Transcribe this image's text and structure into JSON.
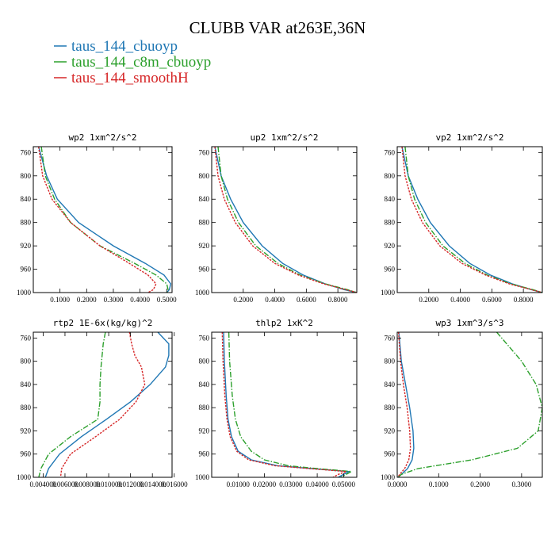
{
  "figure_title": "CLUBB VAR at263E,36N",
  "legend": [
    {
      "label": "taus_144_cbuoyp",
      "color": "#1f77b4",
      "dash": "solid"
    },
    {
      "label": "taus_144_c8m_cbuoyp",
      "color": "#2ca02c",
      "dash": "dashdot"
    },
    {
      "label": "taus_144_smoothH",
      "color": "#d62728",
      "dash": "dotted"
    }
  ],
  "chart_data": [
    {
      "type": "line",
      "title": "wp2  1xm^2/s^2",
      "xlim": [
        0,
        0.52
      ],
      "ylim": [
        1000,
        750
      ],
      "yticks": [
        760,
        800,
        840,
        880,
        920,
        960,
        1000
      ],
      "xticks": [
        0.1,
        0.2,
        0.3,
        0.4,
        0.5
      ],
      "xtick_labels": [
        "0.1000",
        "0.2000",
        "0.3000",
        "0.4000",
        "0.5000"
      ],
      "y": [
        750,
        800,
        840,
        880,
        920,
        950,
        970,
        985,
        995,
        1000
      ],
      "series": [
        {
          "name": "taus_144_cbuoyp",
          "values": [
            0.02,
            0.05,
            0.09,
            0.17,
            0.3,
            0.42,
            0.49,
            0.515,
            0.51,
            0.5
          ]
        },
        {
          "name": "taus_144_c8m_cbuoyp",
          "values": [
            0.03,
            0.045,
            0.08,
            0.14,
            0.25,
            0.38,
            0.46,
            0.5,
            0.505,
            0.5
          ]
        },
        {
          "name": "taus_144_smoothH",
          "values": [
            0.02,
            0.035,
            0.07,
            0.14,
            0.25,
            0.36,
            0.43,
            0.46,
            0.45,
            0.43
          ]
        }
      ]
    },
    {
      "type": "line",
      "title": "up2  1xm^2/s^2",
      "xlim": [
        0,
        0.92
      ],
      "ylim": [
        1000,
        750
      ],
      "yticks": [
        760,
        800,
        840,
        880,
        920,
        960,
        1000
      ],
      "xticks": [
        0.2,
        0.4,
        0.6,
        0.8
      ],
      "xtick_labels": [
        "0.2000",
        "0.4000",
        "0.6000",
        "0.8000"
      ],
      "y": [
        750,
        800,
        840,
        880,
        920,
        950,
        970,
        985,
        995,
        1000
      ],
      "series": [
        {
          "name": "taus_144_cbuoyp",
          "values": [
            0.02,
            0.06,
            0.12,
            0.2,
            0.32,
            0.45,
            0.58,
            0.72,
            0.84,
            0.92
          ]
        },
        {
          "name": "taus_144_c8m_cbuoyp",
          "values": [
            0.04,
            0.06,
            0.1,
            0.17,
            0.28,
            0.42,
            0.56,
            0.72,
            0.86,
            0.92
          ]
        },
        {
          "name": "taus_144_smoothH",
          "values": [
            0.02,
            0.04,
            0.08,
            0.15,
            0.26,
            0.4,
            0.55,
            0.71,
            0.85,
            0.92
          ]
        }
      ]
    },
    {
      "type": "line",
      "title": "vp2  1xm^2/s^2",
      "xlim": [
        0,
        0.92
      ],
      "ylim": [
        1000,
        750
      ],
      "yticks": [
        760,
        800,
        840,
        880,
        920,
        960,
        1000
      ],
      "xticks": [
        0.2,
        0.4,
        0.6,
        0.8
      ],
      "xtick_labels": [
        "0.2000",
        "0.4000",
        "0.6000",
        "0.8000"
      ],
      "y": [
        750,
        800,
        840,
        880,
        920,
        950,
        970,
        985,
        995,
        1000
      ],
      "series": [
        {
          "name": "taus_144_cbuoyp",
          "values": [
            0.03,
            0.07,
            0.13,
            0.21,
            0.33,
            0.46,
            0.59,
            0.73,
            0.85,
            0.92
          ]
        },
        {
          "name": "taus_144_c8m_cbuoyp",
          "values": [
            0.05,
            0.07,
            0.11,
            0.18,
            0.29,
            0.43,
            0.57,
            0.72,
            0.86,
            0.92
          ]
        },
        {
          "name": "taus_144_smoothH",
          "values": [
            0.03,
            0.05,
            0.09,
            0.16,
            0.27,
            0.41,
            0.56,
            0.71,
            0.85,
            0.92
          ]
        }
      ]
    },
    {
      "type": "line",
      "title": "rtp2  1E-6x(kg/kg)^2",
      "xlim": [
        0.0031,
        0.0158
      ],
      "ylim": [
        1000,
        750
      ],
      "yticks": [
        760,
        800,
        840,
        880,
        920,
        960,
        1000
      ],
      "xticks": [
        0.004,
        0.006,
        0.008,
        0.01,
        0.012,
        0.014,
        0.016
      ],
      "xtick_labels": [
        "0.004000",
        "0.006000",
        "0.008000",
        "0.010000",
        "0.012000",
        "0.014000",
        "0.016000"
      ],
      "y": [
        750,
        770,
        790,
        810,
        840,
        870,
        900,
        930,
        960,
        985,
        1000
      ],
      "series": [
        {
          "name": "taus_144_cbuoyp",
          "values": [
            0.0145,
            0.0155,
            0.0155,
            0.0152,
            0.0138,
            0.012,
            0.0098,
            0.0075,
            0.0055,
            0.0045,
            0.0042
          ]
        },
        {
          "name": "taus_144_c8m_cbuoyp",
          "values": [
            0.0097,
            0.0095,
            0.0094,
            0.0093,
            0.0092,
            0.0092,
            0.009,
            0.0065,
            0.0045,
            0.0038,
            0.0036
          ]
        },
        {
          "name": "taus_144_smoothH",
          "values": [
            0.0119,
            0.0121,
            0.0124,
            0.013,
            0.0133,
            0.0125,
            0.011,
            0.0088,
            0.0065,
            0.0057,
            0.0056
          ]
        }
      ]
    },
    {
      "type": "line",
      "title": "thlp2  1xK^2",
      "xlim": [
        0,
        0.055
      ],
      "ylim": [
        1000,
        750
      ],
      "yticks": [
        760,
        800,
        840,
        880,
        920,
        960,
        1000
      ],
      "xticks": [
        0.01,
        0.02,
        0.03,
        0.04,
        0.05
      ],
      "xtick_labels": [
        "0.01000",
        "0.02000",
        "0.03000",
        "0.04000",
        "0.05000"
      ],
      "y": [
        750,
        800,
        860,
        900,
        930,
        955,
        970,
        980,
        985,
        990,
        995,
        1000
      ],
      "series": [
        {
          "name": "taus_144_cbuoyp",
          "values": [
            0.0045,
            0.0048,
            0.0055,
            0.0062,
            0.0075,
            0.01,
            0.015,
            0.025,
            0.038,
            0.052,
            0.05,
            0.048
          ]
        },
        {
          "name": "taus_144_c8m_cbuoyp",
          "values": [
            0.0065,
            0.0068,
            0.0078,
            0.009,
            0.011,
            0.015,
            0.02,
            0.029,
            0.04,
            0.053,
            0.051,
            0.049
          ]
        },
        {
          "name": "taus_144_smoothH",
          "values": [
            0.004,
            0.0043,
            0.005,
            0.0058,
            0.007,
            0.0095,
            0.014,
            0.024,
            0.037,
            0.051,
            0.048,
            0.046
          ]
        }
      ]
    },
    {
      "type": "line",
      "title": "wp3  1xm^3/s^3",
      "xlim": [
        0,
        0.35
      ],
      "ylim": [
        1000,
        750
      ],
      "yticks": [
        760,
        800,
        840,
        880,
        920,
        960,
        1000
      ],
      "xticks": [
        0.0,
        0.1,
        0.2,
        0.3
      ],
      "xtick_labels": [
        "0.0000",
        "0.1000",
        "0.2000",
        "0.3000"
      ],
      "y": [
        750,
        800,
        840,
        880,
        920,
        950,
        970,
        985,
        995,
        1000
      ],
      "series": [
        {
          "name": "taus_144_cbuoyp",
          "values": [
            0.004,
            0.01,
            0.02,
            0.03,
            0.038,
            0.04,
            0.036,
            0.025,
            0.01,
            0.002
          ]
        },
        {
          "name": "taus_144_c8m_cbuoyp",
          "values": [
            0.24,
            0.3,
            0.335,
            0.35,
            0.34,
            0.29,
            0.18,
            0.05,
            0.01,
            0.002
          ]
        },
        {
          "name": "taus_144_smoothH",
          "values": [
            0.003,
            0.008,
            0.015,
            0.024,
            0.03,
            0.032,
            0.028,
            0.018,
            0.006,
            0.001
          ]
        }
      ]
    }
  ]
}
